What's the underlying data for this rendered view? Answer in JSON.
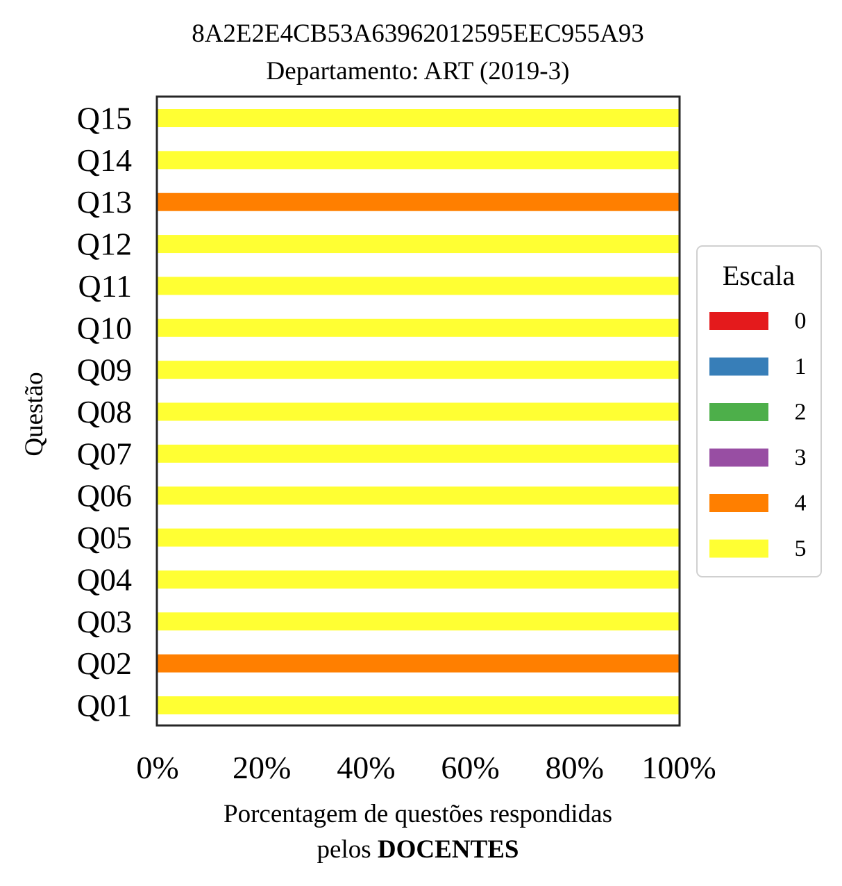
{
  "chart_data": {
    "type": "bar",
    "orientation": "horizontal",
    "stacked": true,
    "title": "8A2E2E4CB53A63962012595EEC955A93",
    "subtitle": "Departamento: ART (2019-3)",
    "xlabel_line1": "Porcentagem de questões respondidas",
    "xlabel_line2_prefix": "pelos ",
    "xlabel_line2_bold": "DOCENTES",
    "ylabel": "Questão",
    "xlim": [
      0,
      100
    ],
    "xticks": [
      {
        "value": 0,
        "label": "0%"
      },
      {
        "value": 20,
        "label": "20%"
      },
      {
        "value": 40,
        "label": "40%"
      },
      {
        "value": 60,
        "label": "60%"
      },
      {
        "value": 80,
        "label": "80%"
      },
      {
        "value": 100,
        "label": "100%"
      }
    ],
    "categories": [
      "Q01",
      "Q02",
      "Q03",
      "Q04",
      "Q05",
      "Q06",
      "Q07",
      "Q08",
      "Q09",
      "Q10",
      "Q11",
      "Q12",
      "Q13",
      "Q14",
      "Q15"
    ],
    "series": [
      {
        "name": "0",
        "color": "#e41a1c",
        "values": [
          0,
          0,
          0,
          0,
          0,
          0,
          0,
          0,
          0,
          0,
          0,
          0,
          0,
          0,
          0
        ]
      },
      {
        "name": "1",
        "color": "#377eb8",
        "values": [
          0,
          0,
          0,
          0,
          0,
          0,
          0,
          0,
          0,
          0,
          0,
          0,
          0,
          0,
          0
        ]
      },
      {
        "name": "2",
        "color": "#4daf4a",
        "values": [
          0,
          0,
          0,
          0,
          0,
          0,
          0,
          0,
          0,
          0,
          0,
          0,
          0,
          0,
          0
        ]
      },
      {
        "name": "3",
        "color": "#984ea3",
        "values": [
          0,
          0,
          0,
          0,
          0,
          0,
          0,
          0,
          0,
          0,
          0,
          0,
          0,
          0,
          0
        ]
      },
      {
        "name": "4",
        "color": "#ff7f00",
        "values": [
          0,
          100,
          0,
          0,
          0,
          0,
          0,
          0,
          0,
          0,
          0,
          0,
          100,
          0,
          0
        ]
      },
      {
        "name": "5",
        "color": "#ffff33",
        "values": [
          100,
          0,
          100,
          100,
          100,
          100,
          100,
          100,
          100,
          100,
          100,
          100,
          0,
          100,
          100
        ]
      }
    ],
    "legend": {
      "title": "Escala",
      "position": "center-right"
    }
  }
}
